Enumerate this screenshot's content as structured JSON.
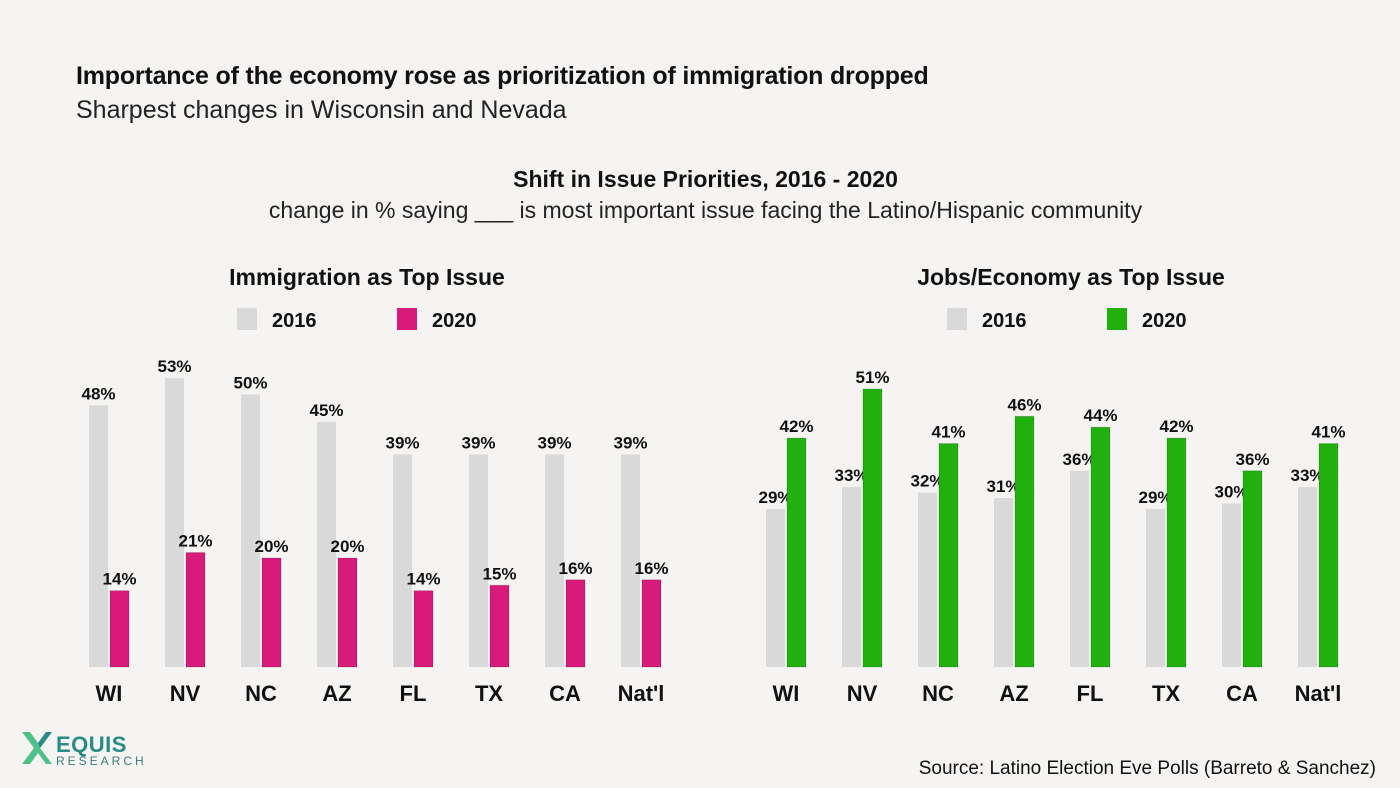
{
  "header": {
    "headline": "Importance of the economy rose as prioritization of immigration dropped",
    "subhead": "Sharpest changes in Wisconsin and Nevada"
  },
  "chart_header": {
    "title": "Shift in Issue Priorities, 2016 - 2020",
    "subtitle": "change in % saying ___ is most important issue facing the Latino/Hispanic community"
  },
  "colors": {
    "color_2016": "#d9d9d9",
    "color_2020_immigration": "#d81b7a",
    "color_2020_economy": "#22b00e"
  },
  "chart_data": [
    {
      "type": "bar",
      "title": "Immigration as Top Issue",
      "categories": [
        "WI",
        "NV",
        "NC",
        "AZ",
        "FL",
        "TX",
        "CA",
        "Nat'l"
      ],
      "series": [
        {
          "name": "2016",
          "values": [
            48,
            53,
            50,
            45,
            39,
            39,
            39,
            39
          ],
          "color": "#d9d9d9"
        },
        {
          "name": "2020",
          "values": [
            14,
            21,
            20,
            20,
            14,
            15,
            16,
            16
          ],
          "color": "#d81b7a"
        }
      ],
      "value_suffix": "%",
      "ylim": [
        0,
        53
      ],
      "grid": false,
      "legend": "top-center"
    },
    {
      "type": "bar",
      "title": "Jobs/Economy as Top Issue",
      "categories": [
        "WI",
        "NV",
        "NC",
        "AZ",
        "FL",
        "TX",
        "CA",
        "Nat'l"
      ],
      "series": [
        {
          "name": "2016",
          "values": [
            29,
            33,
            32,
            31,
            36,
            29,
            30,
            33
          ],
          "color": "#d9d9d9"
        },
        {
          "name": "2020",
          "values": [
            42,
            51,
            41,
            46,
            44,
            42,
            36,
            41
          ],
          "color": "#22b00e"
        }
      ],
      "value_suffix": "%",
      "ylim": [
        0,
        53
      ],
      "grid": false,
      "legend": "top-center"
    }
  ],
  "logo": {
    "name": "EQUIS",
    "subtitle": "RESEARCH"
  },
  "source": "Source: Latino Election Eve Polls (Barreto & Sanchez)"
}
